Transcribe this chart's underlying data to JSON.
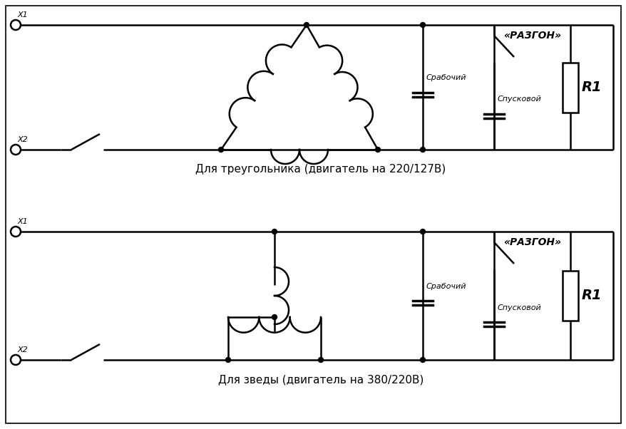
{
  "bg_color": "#ffffff",
  "line_color": "#000000",
  "title1": "Для треугольника (двигатель на 220/127В)",
  "title2": "Для зведы (двигатель на 380/220В)",
  "label_x1": "X1",
  "label_x2": "X2",
  "label_razgon": "«РАЗГОН»",
  "label_srabochiy": "Срабочий",
  "label_spuskovoy": "Спусковой",
  "label_r1": "R1",
  "font_size_title": 11,
  "font_size_label": 8,
  "font_size_r1": 14
}
